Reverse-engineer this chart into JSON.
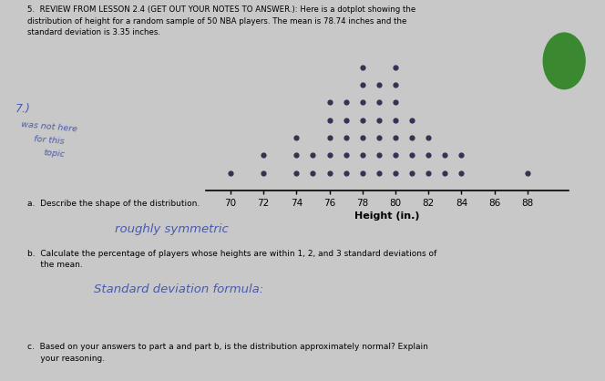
{
  "title_line1": "5.  REVIEW FROM LESSON 2.4 (GET OUT YOUR NOTES TO ANSWER.): Here is a dotplot showing the",
  "title_line2": "distribution of height for a random sample of 50 NBA players. The mean is 78.74 inches and the",
  "title_line3": "standard deviation is 3.35 inches.",
  "xlabel": "Height (in.)",
  "xlim": [
    68.5,
    90.5
  ],
  "xticks": [
    70,
    72,
    74,
    76,
    78,
    80,
    82,
    84,
    86,
    88
  ],
  "dot_counts": {
    "70": 1,
    "71": 0,
    "72": 2,
    "73": 0,
    "74": 3,
    "75": 2,
    "76": 5,
    "77": 5,
    "78": 7,
    "79": 6,
    "80": 7,
    "81": 4,
    "82": 3,
    "83": 2,
    "84": 2,
    "85": 0,
    "86": 0,
    "87": 0,
    "88": 1
  },
  "dot_color": "#3a3050",
  "dot_size": 4.5,
  "annotation_text_a": "a.  Describe the shape of the distribution.",
  "annotation_text_b1": "b.  Calculate the percentage of players whose heights are within 1, 2, and 3 standard deviations of",
  "annotation_text_b2": "     the mean.",
  "annotation_text_c1": "c.  Based on your answers to part a and part b, is the distribution approximately normal? Explain",
  "annotation_text_c2": "     your reasoning.",
  "handwritten_color": "#4a5aaa",
  "bg_color": "#c8c8c8",
  "green_color": "#3a8830"
}
